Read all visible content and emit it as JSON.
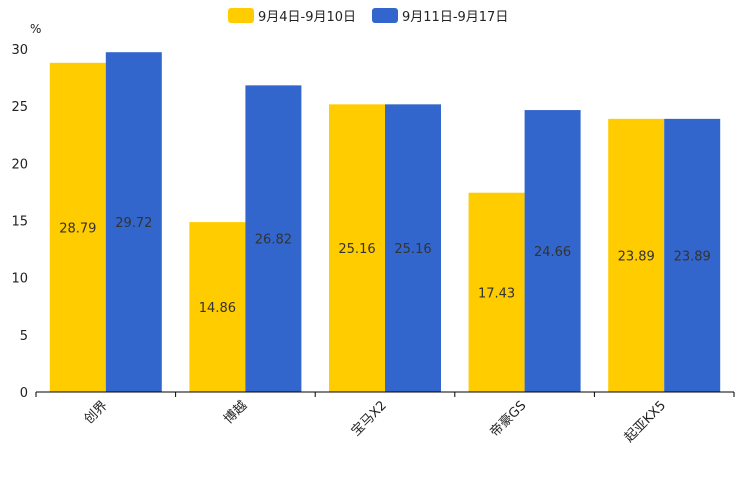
{
  "chart_data": {
    "type": "bar",
    "unit": "%",
    "categories": [
      "创界",
      "博越",
      "宝马X2",
      "帝豪GS",
      "起亚KX5"
    ],
    "series": [
      {
        "name": "9月4日-9月10日",
        "color": "#FFCC00",
        "values": [
          28.79,
          14.86,
          25.16,
          17.43,
          23.89
        ]
      },
      {
        "name": "9月11日-9月17日",
        "color": "#3366CC",
        "values": [
          29.72,
          26.82,
          25.16,
          24.66,
          23.89
        ]
      }
    ],
    "ylim": [
      0,
      30
    ],
    "yticks": [
      0,
      5,
      10,
      15,
      20,
      25,
      30
    ],
    "legend_position": "top-center",
    "grid": false
  }
}
